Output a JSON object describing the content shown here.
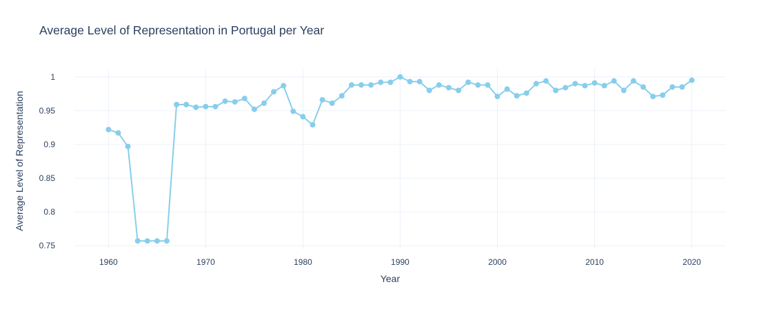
{
  "chart_data": {
    "type": "line",
    "title": "Average Level of Representation in Portugal per Year",
    "xlabel": "Year",
    "ylabel": "Average Level of Representation",
    "xlim": [
      1956.5,
      2023.5
    ],
    "ylim": [
      0.745,
      1.012
    ],
    "x_ticks": [
      1960,
      1970,
      1980,
      1990,
      2000,
      2010,
      2020
    ],
    "y_ticks": [
      0.75,
      0.8,
      0.85,
      0.9,
      0.95,
      1
    ],
    "y_tick_labels": [
      "0.75",
      "0.8",
      "0.85",
      "0.9",
      "0.95",
      "1"
    ],
    "grid": true,
    "legend": "none",
    "series": [
      {
        "color": "#87CEEB",
        "x": [
          1960,
          1961,
          1962,
          1963,
          1964,
          1965,
          1966,
          1967,
          1968,
          1969,
          1970,
          1971,
          1972,
          1973,
          1974,
          1975,
          1976,
          1977,
          1978,
          1979,
          1980,
          1981,
          1982,
          1983,
          1984,
          1985,
          1986,
          1987,
          1988,
          1989,
          1990,
          1991,
          1992,
          1993,
          1994,
          1995,
          1996,
          1997,
          1998,
          1999,
          2000,
          2001,
          2002,
          2003,
          2004,
          2005,
          2006,
          2007,
          2008,
          2009,
          2010,
          2011,
          2012,
          2013,
          2014,
          2015,
          2016,
          2017,
          2018,
          2019,
          2020
        ],
        "y": [
          0.922,
          0.917,
          0.897,
          0.757,
          0.757,
          0.757,
          0.757,
          0.959,
          0.959,
          0.955,
          0.956,
          0.956,
          0.964,
          0.963,
          0.968,
          0.952,
          0.961,
          0.978,
          0.987,
          0.949,
          0.941,
          0.929,
          0.966,
          0.961,
          0.972,
          0.988,
          0.988,
          0.988,
          0.992,
          0.992,
          1.0,
          0.993,
          0.993,
          0.98,
          0.988,
          0.984,
          0.98,
          0.992,
          0.988,
          0.988,
          0.971,
          0.982,
          0.972,
          0.976,
          0.99,
          0.994,
          0.98,
          0.984,
          0.99,
          0.987,
          0.991,
          0.987,
          0.994,
          0.98,
          0.994,
          0.985,
          0.971,
          0.973,
          0.985,
          0.985,
          0.995
        ]
      }
    ]
  }
}
